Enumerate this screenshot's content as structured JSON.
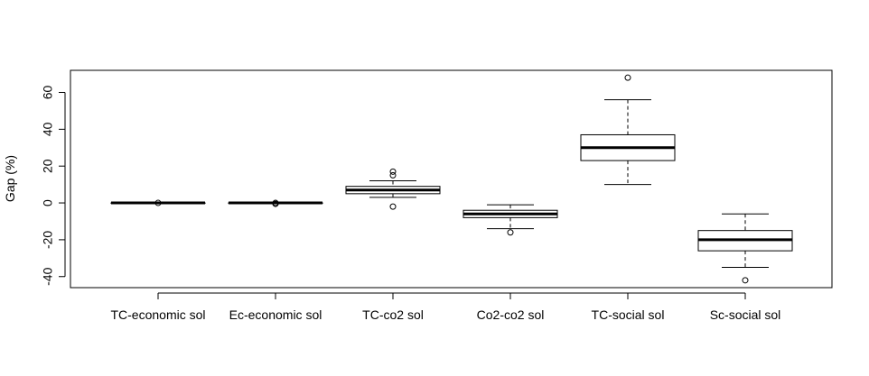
{
  "chart_data": {
    "type": "boxplot",
    "title": "",
    "xlabel": "",
    "ylabel": "Gap (%)",
    "ylim": [
      -46,
      72
    ],
    "yticks": [
      -40,
      -20,
      0,
      20,
      40,
      60
    ],
    "grid": false,
    "legend": "none",
    "categories": [
      "TC-economic sol",
      "Ec-economic sol",
      "TC-co2 sol",
      "Co2-co2 sol",
      "TC-social sol",
      "Sc-social sol"
    ],
    "boxes": [
      {
        "min": 0,
        "q1": 0,
        "median": 0,
        "q3": 0,
        "max": 0,
        "outliers": [
          0
        ]
      },
      {
        "min": 0,
        "q1": 0,
        "median": 0,
        "q3": 0,
        "max": 0,
        "outliers": [
          0,
          -0.5
        ]
      },
      {
        "min": 3,
        "q1": 5,
        "median": 7,
        "q3": 9,
        "max": 12,
        "outliers": [
          15,
          17,
          -2
        ]
      },
      {
        "min": -14,
        "q1": -8,
        "median": -6,
        "q3": -4,
        "max": -1,
        "outliers": [
          -16
        ]
      },
      {
        "min": 10,
        "q1": 23,
        "median": 30,
        "q3": 37,
        "max": 56,
        "outliers": [
          68
        ]
      },
      {
        "min": -35,
        "q1": -26,
        "median": -20,
        "q3": -15,
        "max": -6,
        "outliers": [
          -42
        ]
      }
    ]
  }
}
